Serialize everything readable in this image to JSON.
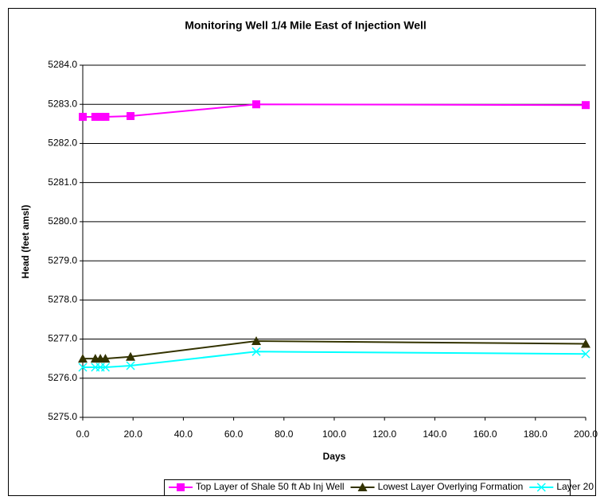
{
  "chart_data": {
    "type": "line",
    "title": "Monitoring Well 1/4 Mile East of Injection Well",
    "x_label": "Days",
    "y_label": "Head (feet amsl)",
    "x": [
      0,
      5,
      7,
      9,
      19,
      69,
      200
    ],
    "series": [
      {
        "name": "Top Layer of Shale 50 ft Ab Inj Well",
        "color": "#ff00ff",
        "marker": "square",
        "values": [
          5282.68,
          5282.68,
          5282.68,
          5282.68,
          5282.7,
          5283.0,
          5282.98
        ]
      },
      {
        "name": "Lowest Layer Overlying Formation",
        "color": "#333300",
        "marker": "triangle",
        "values": [
          5276.5,
          5276.5,
          5276.5,
          5276.5,
          5276.55,
          5276.95,
          5276.88
        ]
      },
      {
        "name": "Layer 20",
        "color": "#00ffff",
        "marker": "x",
        "values": [
          5276.28,
          5276.28,
          5276.28,
          5276.28,
          5276.32,
          5276.68,
          5276.62
        ]
      }
    ],
    "xlim": [
      0,
      200
    ],
    "xticks": [
      {
        "value": 0,
        "label": "0.0"
      },
      {
        "value": 20,
        "label": "20.0"
      },
      {
        "value": 40,
        "label": "40.0"
      },
      {
        "value": 60,
        "label": "60.0"
      },
      {
        "value": 80,
        "label": "80.0"
      },
      {
        "value": 100,
        "label": "100.0"
      },
      {
        "value": 120,
        "label": "120.0"
      },
      {
        "value": 140,
        "label": "140.0"
      },
      {
        "value": 160,
        "label": "160.0"
      },
      {
        "value": 180,
        "label": "180.0"
      },
      {
        "value": 200,
        "label": "200.0"
      }
    ],
    "ylim": [
      5275,
      5284
    ],
    "yticks": [
      {
        "value": 5275,
        "label": "5275.0"
      },
      {
        "value": 5276,
        "label": "5276.0"
      },
      {
        "value": 5277,
        "label": "5277.0"
      },
      {
        "value": 5278,
        "label": "5278.0"
      },
      {
        "value": 5279,
        "label": "5279.0"
      },
      {
        "value": 5280,
        "label": "5280.0"
      },
      {
        "value": 5281,
        "label": "5281.0"
      },
      {
        "value": 5282,
        "label": "5282.0"
      },
      {
        "value": 5283,
        "label": "5283.0"
      },
      {
        "value": 5284,
        "label": "5284.0"
      }
    ],
    "grid": true,
    "legend": "bottom"
  }
}
